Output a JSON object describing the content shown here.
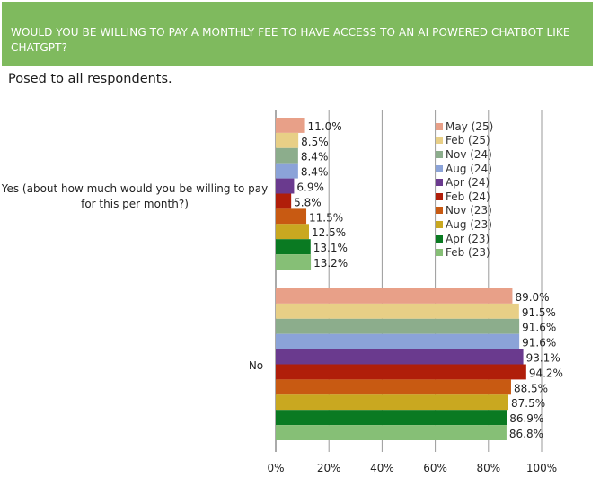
{
  "header": {
    "title": "WOULD YOU BE WILLING TO PAY A MONTHLY FEE TO HAVE ACCESS TO AN AI POWERED CHATBOT LIKE CHATGPT?"
  },
  "subtitle": "Posed to all respondents.",
  "categories": [
    "Yes (about how much would you be willing to pay for this per month?)",
    "No"
  ],
  "chart_data": {
    "type": "bar",
    "orientation": "horizontal",
    "title": "WOULD YOU BE WILLING TO PAY A MONTHLY FEE TO HAVE ACCESS TO AN AI POWERED CHATBOT LIKE CHATGPT?",
    "subtitle": "Posed to all respondents.",
    "categories": [
      "Yes (about how much would you be willing to pay for this per month?)",
      "No"
    ],
    "xlim": [
      0,
      100
    ],
    "xticks": [
      "0%",
      "20%",
      "40%",
      "60%",
      "80%",
      "100%"
    ],
    "grid": true,
    "legend_position": "right",
    "series": [
      {
        "name": "May (25)",
        "color": "#e8a088",
        "values": [
          11.0,
          89.0
        ],
        "labels": [
          "11.0%",
          "89.0%"
        ]
      },
      {
        "name": "Feb (25)",
        "color": "#e8cf86",
        "values": [
          8.5,
          91.5
        ],
        "labels": [
          "8.5%",
          "91.5%"
        ]
      },
      {
        "name": "Nov (24)",
        "color": "#8cad8c",
        "values": [
          8.4,
          91.6
        ],
        "labels": [
          "8.4%",
          "91.6%"
        ]
      },
      {
        "name": "Aug (24)",
        "color": "#8ba3d8",
        "values": [
          8.4,
          91.6
        ],
        "labels": [
          "8.4%",
          "91.6%"
        ]
      },
      {
        "name": "Apr (24)",
        "color": "#6a3a8e",
        "values": [
          6.9,
          93.1
        ],
        "labels": [
          "6.9%",
          "93.1%"
        ]
      },
      {
        "name": "Feb (24)",
        "color": "#b01e0a",
        "values": [
          5.8,
          94.2
        ],
        "labels": [
          "5.8%",
          "94.2%"
        ]
      },
      {
        "name": "Nov (23)",
        "color": "#c85a12",
        "values": [
          11.5,
          88.5
        ],
        "labels": [
          "11.5%",
          "88.5%"
        ]
      },
      {
        "name": "Aug (23)",
        "color": "#c9a820",
        "values": [
          12.5,
          87.5
        ],
        "labels": [
          "12.5%",
          "87.5%"
        ]
      },
      {
        "name": "Apr (23)",
        "color": "#0a7a22",
        "values": [
          13.1,
          86.9
        ],
        "labels": [
          "13.1%",
          "86.9%"
        ]
      },
      {
        "name": "Feb (23)",
        "color": "#86bf76",
        "values": [
          13.2,
          86.8
        ],
        "labels": [
          "13.2%",
          "86.8%"
        ]
      }
    ]
  }
}
